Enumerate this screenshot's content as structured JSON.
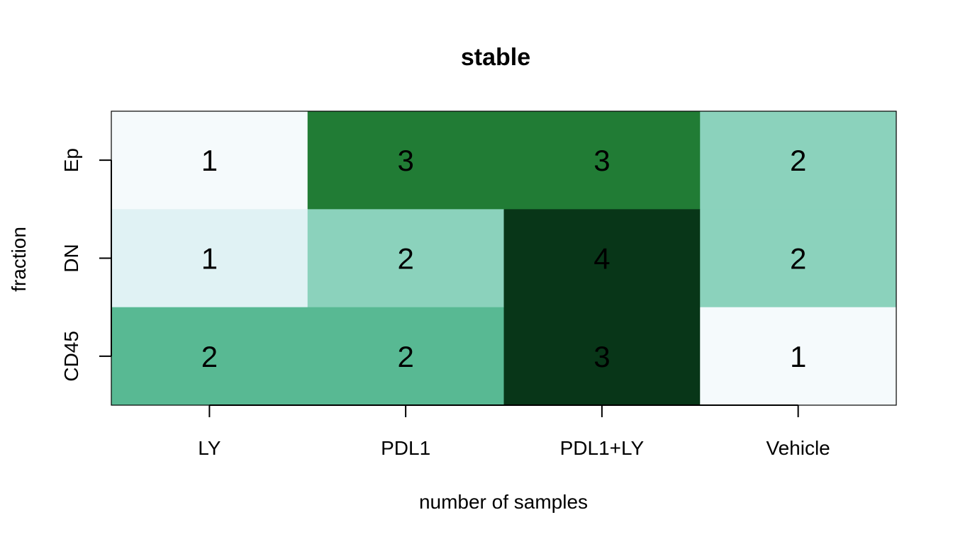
{
  "chart_data": {
    "type": "heatmap",
    "title": "stable",
    "xlabel": "number of samples",
    "ylabel": "fraction",
    "x_categories": [
      "LY",
      "PDL1",
      "PDL1+LY",
      "Vehicle"
    ],
    "y_categories": [
      "Ep",
      "DN",
      "CD45"
    ],
    "values": [
      [
        1,
        3,
        3,
        2
      ],
      [
        1,
        2,
        4,
        2
      ],
      [
        2,
        2,
        3,
        1
      ]
    ],
    "cell_colors": [
      [
        "#f5fafc",
        "#217c35",
        "#217c35",
        "#8bd2bc"
      ],
      [
        "#e0f2f4",
        "#8bd2bc",
        "#083618",
        "#8bd2bc"
      ],
      [
        "#58b993",
        "#58b993",
        "#083618",
        "#f5fafc"
      ]
    ],
    "legend": "none",
    "grid": false
  }
}
